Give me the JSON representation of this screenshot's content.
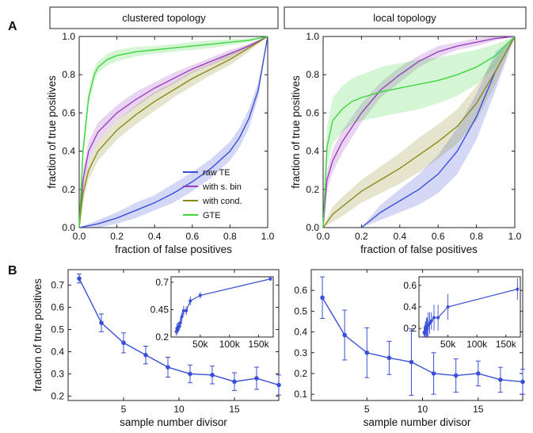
{
  "section_labels": {
    "a": "A",
    "b": "B"
  },
  "chart_data": [
    {
      "type": "line",
      "title": "clustered topology",
      "xlabel": "fraction of false positives",
      "ylabel": "fraction of true positives",
      "xlim": [
        0,
        1
      ],
      "ylim": [
        0,
        1
      ],
      "xticks": [
        0,
        0.2,
        0.4,
        0.6,
        0.8,
        1.0
      ],
      "yticks": [
        0,
        0.2,
        0.4,
        0.6,
        0.8,
        1.0
      ],
      "xtick_labels": [
        "0.0",
        "0.2",
        "0.4",
        "0.6",
        "0.8",
        "1.0"
      ],
      "ytick_labels": [
        "0.0",
        "0.2",
        "0.4",
        "0.6",
        "0.8",
        "1.0"
      ],
      "legend_position": "bottom-right",
      "series": [
        {
          "name": "raw TE",
          "color": "#3a4fd8",
          "x": [
            0,
            0.1,
            0.2,
            0.3,
            0.4,
            0.5,
            0.6,
            0.7,
            0.8,
            0.85,
            0.9,
            0.95,
            1.0
          ],
          "y": [
            0,
            0.02,
            0.05,
            0.09,
            0.13,
            0.18,
            0.24,
            0.31,
            0.4,
            0.47,
            0.57,
            0.72,
            1.0
          ],
          "band": [
            0,
            0.02,
            0.03,
            0.04,
            0.04,
            0.05,
            0.05,
            0.05,
            0.05,
            0.05,
            0.05,
            0.04,
            0
          ]
        },
        {
          "name": "with s. bin",
          "color": "#9a3fc0",
          "x": [
            0,
            0.02,
            0.05,
            0.1,
            0.2,
            0.3,
            0.4,
            0.5,
            0.6,
            0.7,
            0.8,
            0.9,
            1.0
          ],
          "y": [
            0,
            0.25,
            0.4,
            0.5,
            0.6,
            0.67,
            0.73,
            0.78,
            0.83,
            0.87,
            0.91,
            0.95,
            1.0
          ],
          "band": [
            0,
            0.05,
            0.05,
            0.05,
            0.04,
            0.04,
            0.03,
            0.03,
            0.02,
            0.02,
            0.02,
            0.01,
            0
          ]
        },
        {
          "name": "with cond.",
          "color": "#8a8a1a",
          "x": [
            0,
            0.02,
            0.05,
            0.1,
            0.2,
            0.3,
            0.4,
            0.5,
            0.6,
            0.7,
            0.8,
            0.9,
            1.0
          ],
          "y": [
            0,
            0.18,
            0.3,
            0.4,
            0.51,
            0.59,
            0.66,
            0.72,
            0.78,
            0.83,
            0.88,
            0.94,
            1.0
          ],
          "band": [
            0,
            0.05,
            0.05,
            0.05,
            0.05,
            0.05,
            0.05,
            0.04,
            0.04,
            0.03,
            0.03,
            0.02,
            0
          ]
        },
        {
          "name": "GTE",
          "color": "#3dd63d",
          "x": [
            0,
            0.02,
            0.05,
            0.08,
            0.1,
            0.15,
            0.2,
            0.3,
            0.4,
            0.5,
            0.6,
            0.7,
            0.8,
            0.9,
            1.0
          ],
          "y": [
            0,
            0.4,
            0.68,
            0.8,
            0.84,
            0.88,
            0.9,
            0.92,
            0.93,
            0.94,
            0.95,
            0.96,
            0.97,
            0.98,
            1.0
          ],
          "band": [
            0,
            0.05,
            0.04,
            0.035,
            0.03,
            0.03,
            0.03,
            0.025,
            0.02,
            0.02,
            0.02,
            0.02,
            0.015,
            0.01,
            0
          ]
        }
      ]
    },
    {
      "type": "line",
      "title": "local topology",
      "xlabel": "fraction of false positives",
      "ylabel": "fraction of true positives",
      "xlim": [
        0,
        1
      ],
      "ylim": [
        0,
        1
      ],
      "xticks": [
        0,
        0.2,
        0.4,
        0.6,
        0.8,
        1.0
      ],
      "yticks": [
        0,
        0.2,
        0.4,
        0.6,
        0.8,
        1.0
      ],
      "xtick_labels": [
        "0.0",
        "0.2",
        "0.4",
        "0.6",
        "0.8",
        "1.0"
      ],
      "ytick_labels": [
        "0.0",
        "0.2",
        "0.4",
        "0.6",
        "0.8",
        "1.0"
      ],
      "series": [
        {
          "name": "raw TE",
          "color": "#3a4fd8",
          "x": [
            0.2,
            0.3,
            0.4,
            0.5,
            0.6,
            0.7,
            0.8,
            0.9,
            1.0
          ],
          "y": [
            0,
            0.08,
            0.14,
            0.2,
            0.28,
            0.4,
            0.58,
            0.82,
            1.0
          ],
          "band": [
            0,
            0.04,
            0.06,
            0.08,
            0.1,
            0.12,
            0.12,
            0.1,
            0
          ]
        },
        {
          "name": "with s. bin",
          "color": "#9a3fc0",
          "x": [
            0,
            0.02,
            0.05,
            0.1,
            0.2,
            0.3,
            0.4,
            0.5,
            0.6,
            0.7,
            0.8,
            0.9,
            1.0
          ],
          "y": [
            0,
            0.25,
            0.35,
            0.45,
            0.6,
            0.72,
            0.8,
            0.87,
            0.92,
            0.95,
            0.97,
            0.99,
            1.0
          ],
          "band": [
            0,
            0.05,
            0.06,
            0.06,
            0.05,
            0.04,
            0.04,
            0.03,
            0.03,
            0.02,
            0.02,
            0.01,
            0
          ]
        },
        {
          "name": "with cond.",
          "color": "#8a8a1a",
          "x": [
            0,
            0.05,
            0.1,
            0.2,
            0.3,
            0.4,
            0.5,
            0.6,
            0.7,
            0.8,
            0.9,
            1.0
          ],
          "y": [
            0,
            0.07,
            0.11,
            0.19,
            0.25,
            0.31,
            0.38,
            0.45,
            0.53,
            0.65,
            0.82,
            1.0
          ],
          "band": [
            0,
            0.04,
            0.05,
            0.06,
            0.07,
            0.08,
            0.09,
            0.09,
            0.09,
            0.09,
            0.07,
            0
          ]
        },
        {
          "name": "GTE",
          "color": "#3dd63d",
          "x": [
            0,
            0.02,
            0.05,
            0.1,
            0.15,
            0.2,
            0.3,
            0.4,
            0.5,
            0.6,
            0.7,
            0.8,
            0.9,
            1.0
          ],
          "y": [
            0,
            0.42,
            0.56,
            0.62,
            0.66,
            0.68,
            0.71,
            0.73,
            0.75,
            0.77,
            0.8,
            0.84,
            0.9,
            1.0
          ],
          "band": [
            0,
            0.1,
            0.12,
            0.12,
            0.12,
            0.12,
            0.13,
            0.13,
            0.13,
            0.12,
            0.11,
            0.09,
            0.06,
            0
          ]
        }
      ]
    },
    {
      "type": "line",
      "xlabel": "sample number divisor",
      "ylabel": "fraction of true positives",
      "xlim": [
        0,
        19
      ],
      "ylim": [
        0.18,
        0.77
      ],
      "xticks": [
        5,
        10,
        15
      ],
      "yticks": [
        0.2,
        0.3,
        0.4,
        0.5,
        0.6,
        0.7
      ],
      "xtick_labels": [
        "5",
        "10",
        "15"
      ],
      "ytick_labels": [
        "0.2",
        "0.3",
        "0.4",
        "0.5",
        "0.6",
        "0.7"
      ],
      "series": [
        {
          "color": "#3a4fd8",
          "x": [
            1,
            3,
            5,
            7,
            9,
            11,
            13,
            15,
            17,
            19
          ],
          "y": [
            0.73,
            0.53,
            0.44,
            0.385,
            0.33,
            0.3,
            0.295,
            0.265,
            0.28,
            0.25
          ],
          "err": [
            0.02,
            0.04,
            0.045,
            0.04,
            0.045,
            0.04,
            0.04,
            0.04,
            0.05,
            0.045
          ]
        }
      ],
      "inset": {
        "xlim": [
          0,
          175000
        ],
        "ylim": [
          0.2,
          0.75
        ],
        "xticks": [
          50000,
          100000,
          150000
        ],
        "yticks": [
          0.2,
          0.45,
          0.7
        ],
        "xtick_labels": [
          "50k",
          "100k",
          "150k"
        ],
        "ytick_labels": [
          "0.2",
          "0.45",
          "0.7"
        ],
        "x": [
          9000,
          10000,
          11000,
          12000,
          13000,
          14500,
          16000,
          18500,
          21500,
          26000,
          33000,
          50000,
          170000
        ],
        "y": [
          0.25,
          0.28,
          0.265,
          0.29,
          0.295,
          0.3,
          0.33,
          0.385,
          0.44,
          0.44,
          0.53,
          0.58,
          0.73
        ],
        "err": [
          0.04,
          0.045,
          0.04,
          0.045,
          0.04,
          0.04,
          0.045,
          0.04,
          0.045,
          0.04,
          0.04,
          0.03,
          0.02
        ]
      }
    },
    {
      "type": "line",
      "xlabel": "sample number divisor",
      "ylabel": "",
      "xlim": [
        0,
        19
      ],
      "ylim": [
        0.07,
        0.7
      ],
      "xticks": [
        5,
        10,
        15
      ],
      "yticks": [
        0.1,
        0.2,
        0.3,
        0.4,
        0.5,
        0.6
      ],
      "xtick_labels": [
        "5",
        "10",
        "15"
      ],
      "ytick_labels": [
        "0.1",
        "0.2",
        "0.3",
        "0.4",
        "0.5",
        "0.6"
      ],
      "series": [
        {
          "color": "#3a4fd8",
          "x": [
            1,
            3,
            5,
            7,
            9,
            11,
            13,
            15,
            17,
            19
          ],
          "y": [
            0.565,
            0.385,
            0.3,
            0.275,
            0.255,
            0.2,
            0.19,
            0.2,
            0.17,
            0.16
          ],
          "err": [
            0.1,
            0.12,
            0.12,
            0.08,
            0.16,
            0.1,
            0.08,
            0.06,
            0.06,
            0.06
          ]
        }
      ],
      "inset": {
        "xlim": [
          0,
          175000
        ],
        "ylim": [
          0.12,
          0.68
        ],
        "xticks": [
          50000,
          100000,
          150000
        ],
        "yticks": [
          0.2,
          0.4,
          0.6
        ],
        "xtick_labels": [
          "50k",
          "100k",
          "150k"
        ],
        "ytick_labels": [
          "0.2",
          "0.4",
          "0.6"
        ],
        "x": [
          9000,
          10000,
          11000,
          12000,
          13000,
          14500,
          16000,
          18500,
          21500,
          26000,
          33000,
          50000,
          170000
        ],
        "y": [
          0.16,
          0.17,
          0.2,
          0.19,
          0.2,
          0.2,
          0.23,
          0.25,
          0.27,
          0.3,
          0.3,
          0.4,
          0.565
        ],
        "err": [
          0.06,
          0.06,
          0.06,
          0.08,
          0.1,
          0.1,
          0.12,
          0.1,
          0.08,
          0.12,
          0.12,
          0.12,
          0.1
        ]
      }
    }
  ]
}
